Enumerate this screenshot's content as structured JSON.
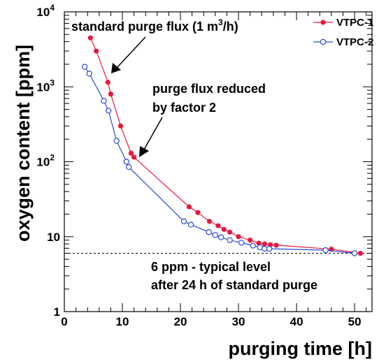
{
  "chart_data": {
    "type": "line",
    "x_axis": {
      "label": "purging time [h]",
      "lim": [
        0,
        53
      ],
      "ticks": [
        0,
        10,
        20,
        30,
        40,
        50
      ],
      "tick_labels": [
        "0",
        "10",
        "20",
        "30",
        "40",
        "50"
      ]
    },
    "y_axis": {
      "label": "oxygen content [ppm]",
      "scale": "log",
      "lim": [
        1,
        10000
      ],
      "major_ticks": [
        1,
        10,
        100,
        1000,
        10000
      ],
      "tick_labels": [
        {
          "base": "1",
          "exp": ""
        },
        {
          "base": "10",
          "exp": ""
        },
        {
          "base": "10",
          "exp": "2"
        },
        {
          "base": "10",
          "exp": "3"
        },
        {
          "base": "10",
          "exp": "4"
        }
      ]
    },
    "series": [
      {
        "name": "VTPC-1",
        "color": "#e8173c",
        "marker": "filled-circle",
        "x": [
          4.5,
          5.5,
          7.5,
          8,
          9.7,
          11.5,
          12,
          21.5,
          23,
          25,
          26.5,
          27.5,
          28.5,
          30,
          32,
          33.5,
          34.5,
          35.5,
          36.5,
          46,
          51
        ],
        "y": [
          4500,
          3000,
          1150,
          800,
          300,
          130,
          115,
          25,
          21,
          16,
          14,
          12.5,
          11.5,
          10,
          9,
          8.2,
          8,
          7.8,
          7.7,
          6.8,
          6
        ]
      },
      {
        "name": "VTPC-2",
        "color": "#2a49d6",
        "marker": "open-circle",
        "x": [
          3.5,
          4.3,
          6.8,
          7.6,
          9,
          10.7,
          11.1,
          20.6,
          21.8,
          24.9,
          26,
          27,
          28.5,
          30.5,
          32.5,
          33.7,
          34.5,
          35.3,
          45,
          50
        ],
        "y": [
          1850,
          1500,
          650,
          480,
          190,
          100,
          85,
          16,
          14.5,
          11.5,
          10.5,
          9.8,
          9,
          8.3,
          7.6,
          7.2,
          6.9,
          6.9,
          6.6,
          6
        ]
      }
    ],
    "reference_line": {
      "y": 6,
      "style": "dashed"
    },
    "legend": {
      "placement": "top-right",
      "entries": [
        "VTPC-1",
        "VTPC-2"
      ]
    },
    "annotations": [
      {
        "id": "purge-flux",
        "text_before": "standard purge flux (1 m",
        "superscript": "3",
        "text_after": "/h)"
      },
      {
        "id": "reduced-1",
        "text": "purge flux reduced"
      },
      {
        "id": "reduced-2",
        "text": "by factor 2"
      },
      {
        "id": "typical-1",
        "text": "6 ppm - typical level"
      },
      {
        "id": "typical-2",
        "text": "after 24 h of standard purge"
      }
    ]
  }
}
